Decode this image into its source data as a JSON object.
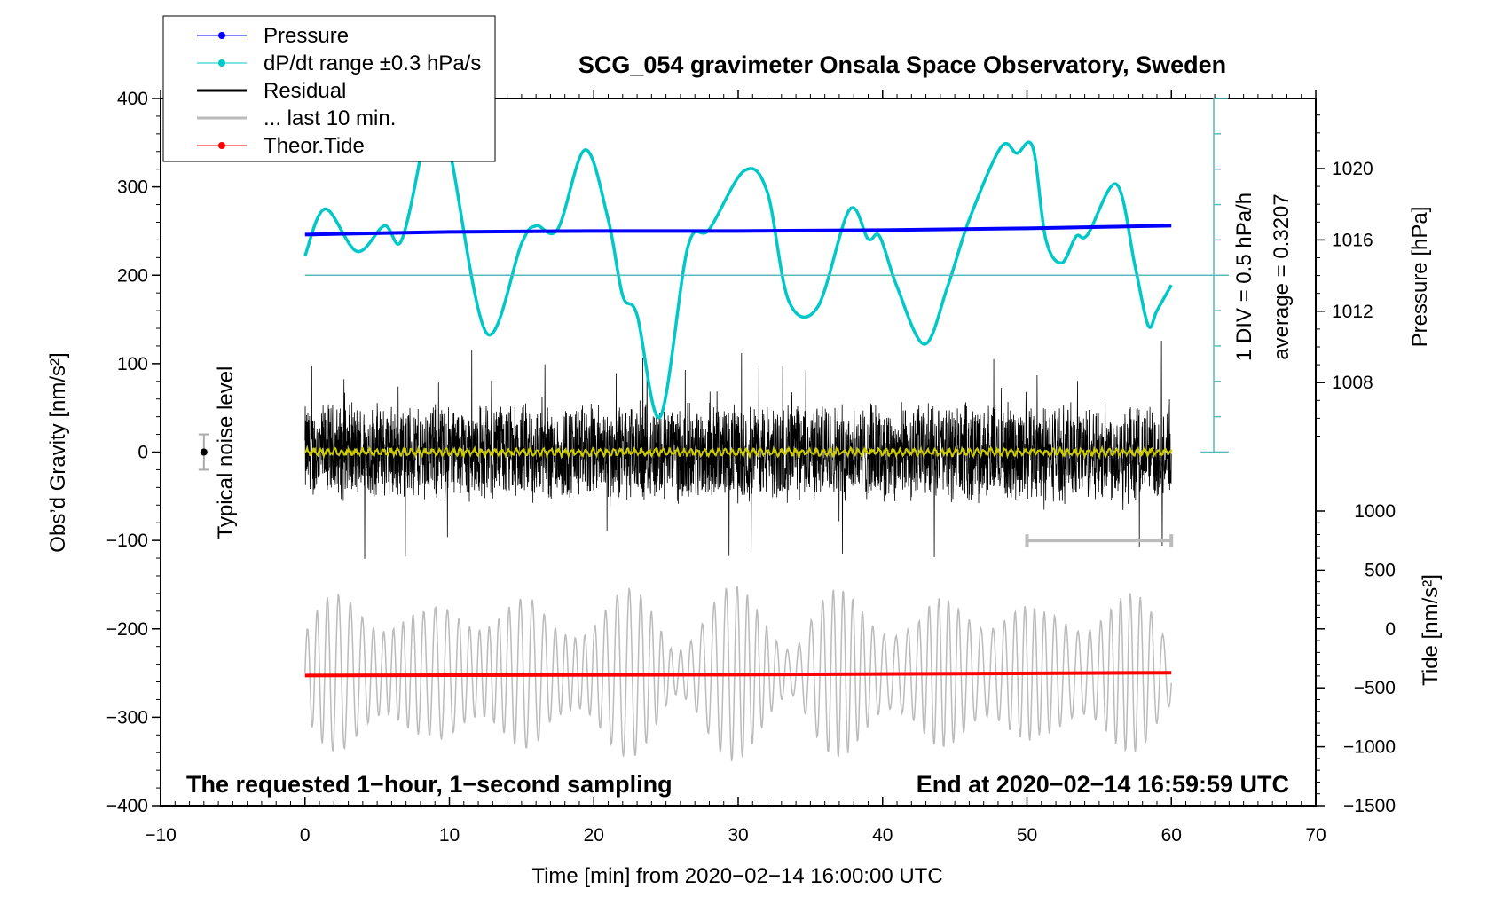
{
  "chart_data": {
    "type": "line",
    "title": "SCG_054 gravimeter Onsala Space Observatory, Sweden",
    "xlabel": "Time [min] from 2020−02−14 16:00:00 UTC",
    "ylabel": "Obs’d Gravity [nm/s²]",
    "ylabel_right_top": "Pressure [hPa]",
    "ylabel_right_bottom": "Tide [nm/s²]",
    "xlim": [
      -10,
      70
    ],
    "ylim": [
      -400,
      400
    ],
    "pressure_lim_ticks": [
      "1020",
      "1016",
      "1012",
      "1008"
    ],
    "tide_ticks": [
      "1000",
      "500",
      "0",
      "−500",
      "−1000",
      "−1500"
    ],
    "x_ticks": [
      "−10",
      "0",
      "10",
      "20",
      "30",
      "40",
      "50",
      "60",
      "70"
    ],
    "y_ticks": [
      "400",
      "300",
      "200",
      "100",
      "0",
      "−100",
      "−200",
      "−300",
      "−400"
    ],
    "legend": {
      "placement": "top-left",
      "entries": [
        {
          "label": "Pressure",
          "color": "#0000ff"
        },
        {
          "label": "dP/dt range ±0.3 hPa/s",
          "color": "#00c8c8"
        },
        {
          "label": "Residual",
          "color": "#000000"
        },
        {
          "label": "... last 10 min.",
          "color": "#bbbbbb"
        },
        {
          "label": "Theor.Tide",
          "color": "#ff0000"
        }
      ]
    },
    "annotations": {
      "div": "1 DIV = 0.5 hPa/h",
      "average": "average = 0.3207",
      "noise": "Typical noise level",
      "bottom_left": "The requested 1−hour, 1−second sampling",
      "bottom_right": "End at 2020−02−14 16:59:59 UTC"
    },
    "series": [
      {
        "name": "dP/dt range ±0.3 hPa/s",
        "color": "#00c8c8",
        "units": "left axis",
        "x": [
          0,
          1.4,
          3.6,
          5.5,
          6.7,
          8.3,
          9,
          10.2,
          12.6,
          15,
          16,
          17.5,
          19.4,
          21,
          22,
          23,
          24.6,
          26.5,
          28,
          30.4,
          32,
          33.5,
          35.5,
          37.7,
          39,
          39.8,
          41,
          42.9,
          44.5,
          46,
          48.2,
          49.3,
          50.4,
          51.3,
          52.4,
          53.4,
          54.2,
          56.2,
          57.5,
          58.4,
          59,
          60
        ],
        "y": [
          222,
          275,
          227,
          256,
          240,
          360,
          430,
          327,
          134,
          236,
          256,
          252,
          342,
          263,
          177,
          155,
          40,
          231,
          252,
          318,
          295,
          171,
          164,
          274,
          241,
          244,
          187,
          122,
          187,
          263,
          345,
          338,
          345,
          241,
          214,
          244,
          246,
          303,
          209,
          143,
          160,
          189
        ]
      },
      {
        "name": "Pressure",
        "color": "#0000ff",
        "units": "hPa",
        "x": [
          0,
          10,
          20,
          30,
          40,
          50,
          60
        ],
        "y": [
          1016.3,
          1016.45,
          1016.5,
          1016.5,
          1016.55,
          1016.65,
          1016.8
        ]
      },
      {
        "name": "Theor.Tide",
        "color": "#ff0000",
        "units": "nm/s²",
        "x": [
          0,
          30,
          60
        ],
        "y": [
          -396,
          -388,
          -372
        ]
      },
      {
        "name": "Residual",
        "color": "#000000",
        "x_range": [
          0,
          60
        ],
        "typical_range": [
          -60,
          60
        ],
        "max": 150,
        "min": -158
      },
      {
        "name": "... last 10 min.",
        "color": "#bbbbbb",
        "x_range": [
          0,
          60
        ],
        "center": -250,
        "typical_range": [
          -330,
          -170
        ]
      }
    ],
    "dpdt_reference_level": 200,
    "noise_level": {
      "x": -7,
      "y": 0,
      "err": 20
    },
    "last10_bar": {
      "x": [
        50,
        60
      ],
      "y": -100
    }
  }
}
